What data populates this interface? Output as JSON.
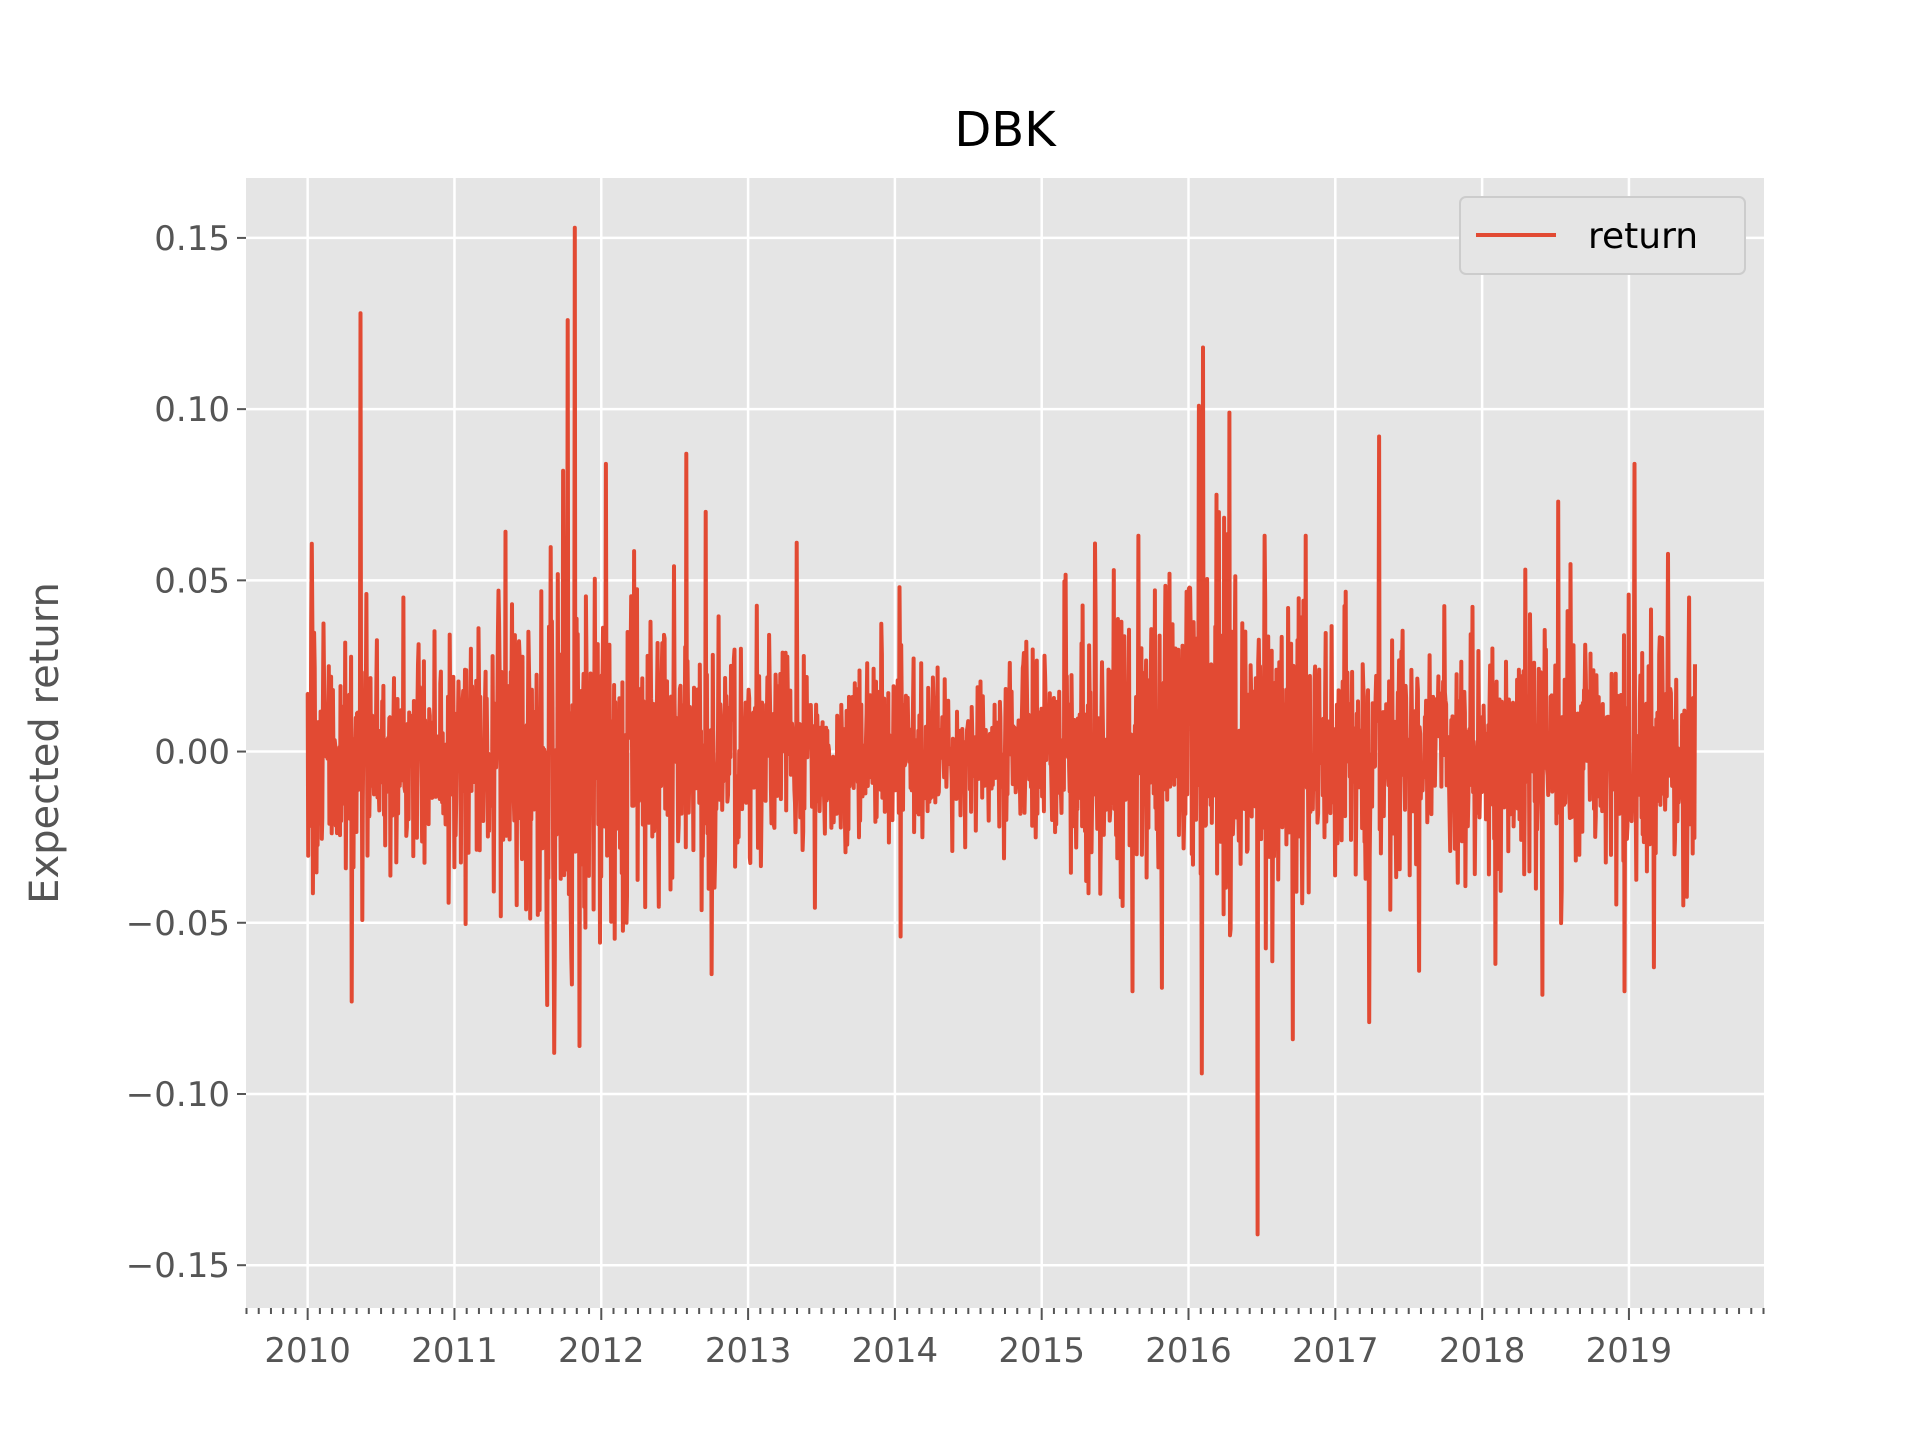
{
  "chart_data": {
    "type": "line",
    "title": "DBK",
    "xlabel": "",
    "ylabel": "Expected return",
    "x_range": [
      2009.58,
      2019.92
    ],
    "ylim": [
      -0.1625,
      0.1675
    ],
    "yticks": [
      0.15,
      0.1,
      0.05,
      0.0,
      -0.05,
      -0.1,
      -0.15
    ],
    "ytick_labels": [
      "0.15",
      "0.10",
      "0.05",
      "0.00",
      "−0.05",
      "−0.10",
      "−0.15"
    ],
    "xticks": [
      2010,
      2011,
      2012,
      2013,
      2014,
      2015,
      2016,
      2017,
      2018,
      2019
    ],
    "xtick_labels": [
      "2010",
      "2011",
      "2012",
      "2013",
      "2014",
      "2015",
      "2016",
      "2017",
      "2018",
      "2019"
    ],
    "grid": true,
    "legend_position": "top-right",
    "colors": {
      "series": "#E24A33",
      "background": "#E5E5E5",
      "grid": "#FFFFFF"
    },
    "series": [
      {
        "name": "return",
        "x_start": 2010.0,
        "x_end": 2019.45,
        "points_per_year": 250,
        "volatility": [
          {
            "year": 2010.0,
            "sd": 0.02
          },
          {
            "year": 2011.0,
            "sd": 0.016
          },
          {
            "year": 2011.55,
            "sd": 0.024
          },
          {
            "year": 2011.75,
            "sd": 0.034
          },
          {
            "year": 2012.0,
            "sd": 0.022
          },
          {
            "year": 2012.6,
            "sd": 0.02
          },
          {
            "year": 2013.0,
            "sd": 0.016
          },
          {
            "year": 2013.8,
            "sd": 0.012
          },
          {
            "year": 2014.5,
            "sd": 0.011
          },
          {
            "year": 2015.0,
            "sd": 0.015
          },
          {
            "year": 2015.6,
            "sd": 0.02
          },
          {
            "year": 2016.0,
            "sd": 0.026
          },
          {
            "year": 2016.5,
            "sd": 0.024
          },
          {
            "year": 2017.0,
            "sd": 0.02
          },
          {
            "year": 2018.0,
            "sd": 0.016
          },
          {
            "year": 2018.9,
            "sd": 0.02
          },
          {
            "year": 2019.45,
            "sd": 0.018
          }
        ],
        "peaks": [
          {
            "x": 2010.0,
            "y": 0.017
          },
          {
            "x": 2010.03,
            "y": 0.036
          },
          {
            "x": 2010.3,
            "y": -0.073
          },
          {
            "x": 2010.36,
            "y": 0.128
          },
          {
            "x": 2010.4,
            "y": 0.046
          },
          {
            "x": 2010.65,
            "y": 0.045
          },
          {
            "x": 2011.3,
            "y": 0.047
          },
          {
            "x": 2011.63,
            "y": -0.074
          },
          {
            "x": 2011.68,
            "y": -0.088
          },
          {
            "x": 2011.74,
            "y": 0.082
          },
          {
            "x": 2011.77,
            "y": 0.126
          },
          {
            "x": 2011.8,
            "y": -0.068
          },
          {
            "x": 2011.82,
            "y": 0.153
          },
          {
            "x": 2011.85,
            "y": -0.086
          },
          {
            "x": 2012.03,
            "y": 0.084
          },
          {
            "x": 2012.17,
            "y": -0.05
          },
          {
            "x": 2012.58,
            "y": 0.087
          },
          {
            "x": 2012.71,
            "y": 0.07
          },
          {
            "x": 2012.75,
            "y": -0.065
          },
          {
            "x": 2013.33,
            "y": 0.061
          },
          {
            "x": 2014.04,
            "y": -0.054
          },
          {
            "x": 2014.03,
            "y": 0.048
          },
          {
            "x": 2015.49,
            "y": 0.053
          },
          {
            "x": 2015.62,
            "y": -0.07
          },
          {
            "x": 2015.66,
            "y": 0.063
          },
          {
            "x": 2015.82,
            "y": -0.069
          },
          {
            "x": 2016.09,
            "y": -0.094
          },
          {
            "x": 2016.1,
            "y": 0.118
          },
          {
            "x": 2016.07,
            "y": 0.101
          },
          {
            "x": 2016.19,
            "y": 0.075
          },
          {
            "x": 2016.28,
            "y": 0.099
          },
          {
            "x": 2016.47,
            "y": -0.141
          },
          {
            "x": 2016.52,
            "y": 0.063
          },
          {
            "x": 2016.71,
            "y": -0.084
          },
          {
            "x": 2016.8,
            "y": 0.063
          },
          {
            "x": 2017.3,
            "y": 0.092
          },
          {
            "x": 2017.23,
            "y": -0.079
          },
          {
            "x": 2017.57,
            "y": -0.064
          },
          {
            "x": 2018.09,
            "y": -0.062
          },
          {
            "x": 2018.41,
            "y": -0.071
          },
          {
            "x": 2018.52,
            "y": 0.073
          },
          {
            "x": 2018.97,
            "y": -0.07
          },
          {
            "x": 2019.04,
            "y": 0.084
          },
          {
            "x": 2019.17,
            "y": -0.063
          },
          {
            "x": 2019.41,
            "y": 0.045
          }
        ]
      }
    ]
  }
}
